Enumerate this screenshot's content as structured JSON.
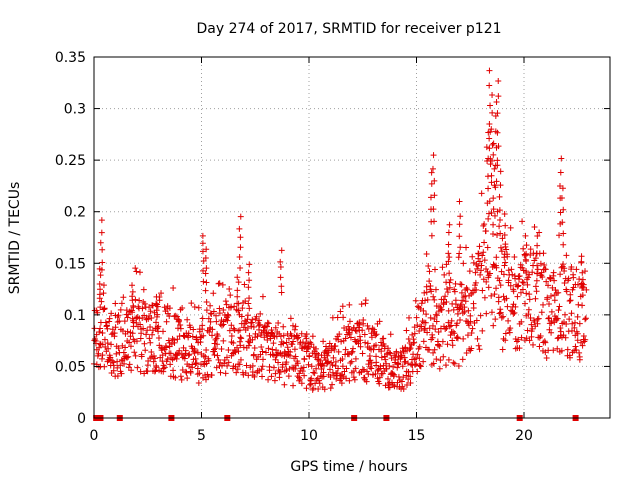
{
  "chart_data": {
    "type": "scatter",
    "title": "Day 274 of 2017, SRMTID for receiver p121",
    "xlabel": "GPS time / hours",
    "ylabel": "SRMTID / TECUs",
    "xlim": [
      0,
      24
    ],
    "ylim": [
      0,
      0.35
    ],
    "xticks": [
      0,
      5,
      10,
      15,
      20
    ],
    "xtick_labels": [
      "0",
      "5",
      "10",
      "15",
      "20"
    ],
    "yticks": [
      0,
      0.05,
      0.1,
      0.15,
      0.2,
      0.25,
      0.3,
      0.35
    ],
    "ytick_labels": [
      "0",
      "0.05",
      "0.1",
      "0.15",
      "0.2",
      "0.25",
      "0.3",
      "0.35"
    ],
    "grid": true,
    "marker": "plus",
    "color": "#e00000",
    "baseline_markers_x": [
      0.1,
      0.2,
      0.3,
      1.2,
      3.6,
      6.2,
      12.1,
      13.6,
      19.8,
      22.4
    ],
    "series": [
      {
        "name": "SRMTID",
        "profile_x": [
          0,
          0.3,
          1,
          1.8,
          2.5,
          3.2,
          4,
          5,
          5.5,
          6.5,
          7.5,
          8.5,
          9.5,
          10.5,
          11.5,
          12.5,
          13.5,
          14,
          14.5,
          15,
          15.5,
          16,
          16.5,
          17,
          17.5,
          18,
          18.5,
          19,
          19.5,
          20,
          20.5,
          21,
          21.5,
          22,
          22.5,
          22.9
        ],
        "profile_y": [
          0.065,
          0.075,
          0.07,
          0.085,
          0.075,
          0.08,
          0.065,
          0.06,
          0.075,
          0.08,
          0.07,
          0.06,
          0.055,
          0.045,
          0.06,
          0.065,
          0.055,
          0.045,
          0.05,
          0.065,
          0.09,
          0.085,
          0.095,
          0.09,
          0.1,
          0.12,
          0.16,
          0.12,
          0.1,
          0.12,
          0.12,
          0.1,
          0.1,
          0.11,
          0.09,
          0.1
        ],
        "peaks": [
          {
            "x": 0.35,
            "y": 0.192
          },
          {
            "x": 0.3,
            "y": 0.148
          },
          {
            "x": 1.8,
            "y": 0.13
          },
          {
            "x": 2.9,
            "y": 0.12
          },
          {
            "x": 5.1,
            "y": 0.18
          },
          {
            "x": 5.2,
            "y": 0.165
          },
          {
            "x": 6.8,
            "y": 0.196
          },
          {
            "x": 6.7,
            "y": 0.14
          },
          {
            "x": 7.2,
            "y": 0.15
          },
          {
            "x": 8.7,
            "y": 0.163
          },
          {
            "x": 15.8,
            "y": 0.258
          },
          {
            "x": 15.7,
            "y": 0.24
          },
          {
            "x": 16.5,
            "y": 0.19
          },
          {
            "x": 17.0,
            "y": 0.21
          },
          {
            "x": 18.4,
            "y": 0.34
          },
          {
            "x": 18.5,
            "y": 0.315
          },
          {
            "x": 18.8,
            "y": 0.33
          },
          {
            "x": 18.7,
            "y": 0.31
          },
          {
            "x": 18.3,
            "y": 0.28
          },
          {
            "x": 18.6,
            "y": 0.27
          },
          {
            "x": 18.9,
            "y": 0.24
          },
          {
            "x": 19.1,
            "y": 0.2
          },
          {
            "x": 20.1,
            "y": 0.18
          },
          {
            "x": 20.6,
            "y": 0.178
          },
          {
            "x": 21.7,
            "y": 0.252
          },
          {
            "x": 21.8,
            "y": 0.225
          },
          {
            "x": 22.7,
            "y": 0.16
          }
        ]
      }
    ]
  }
}
